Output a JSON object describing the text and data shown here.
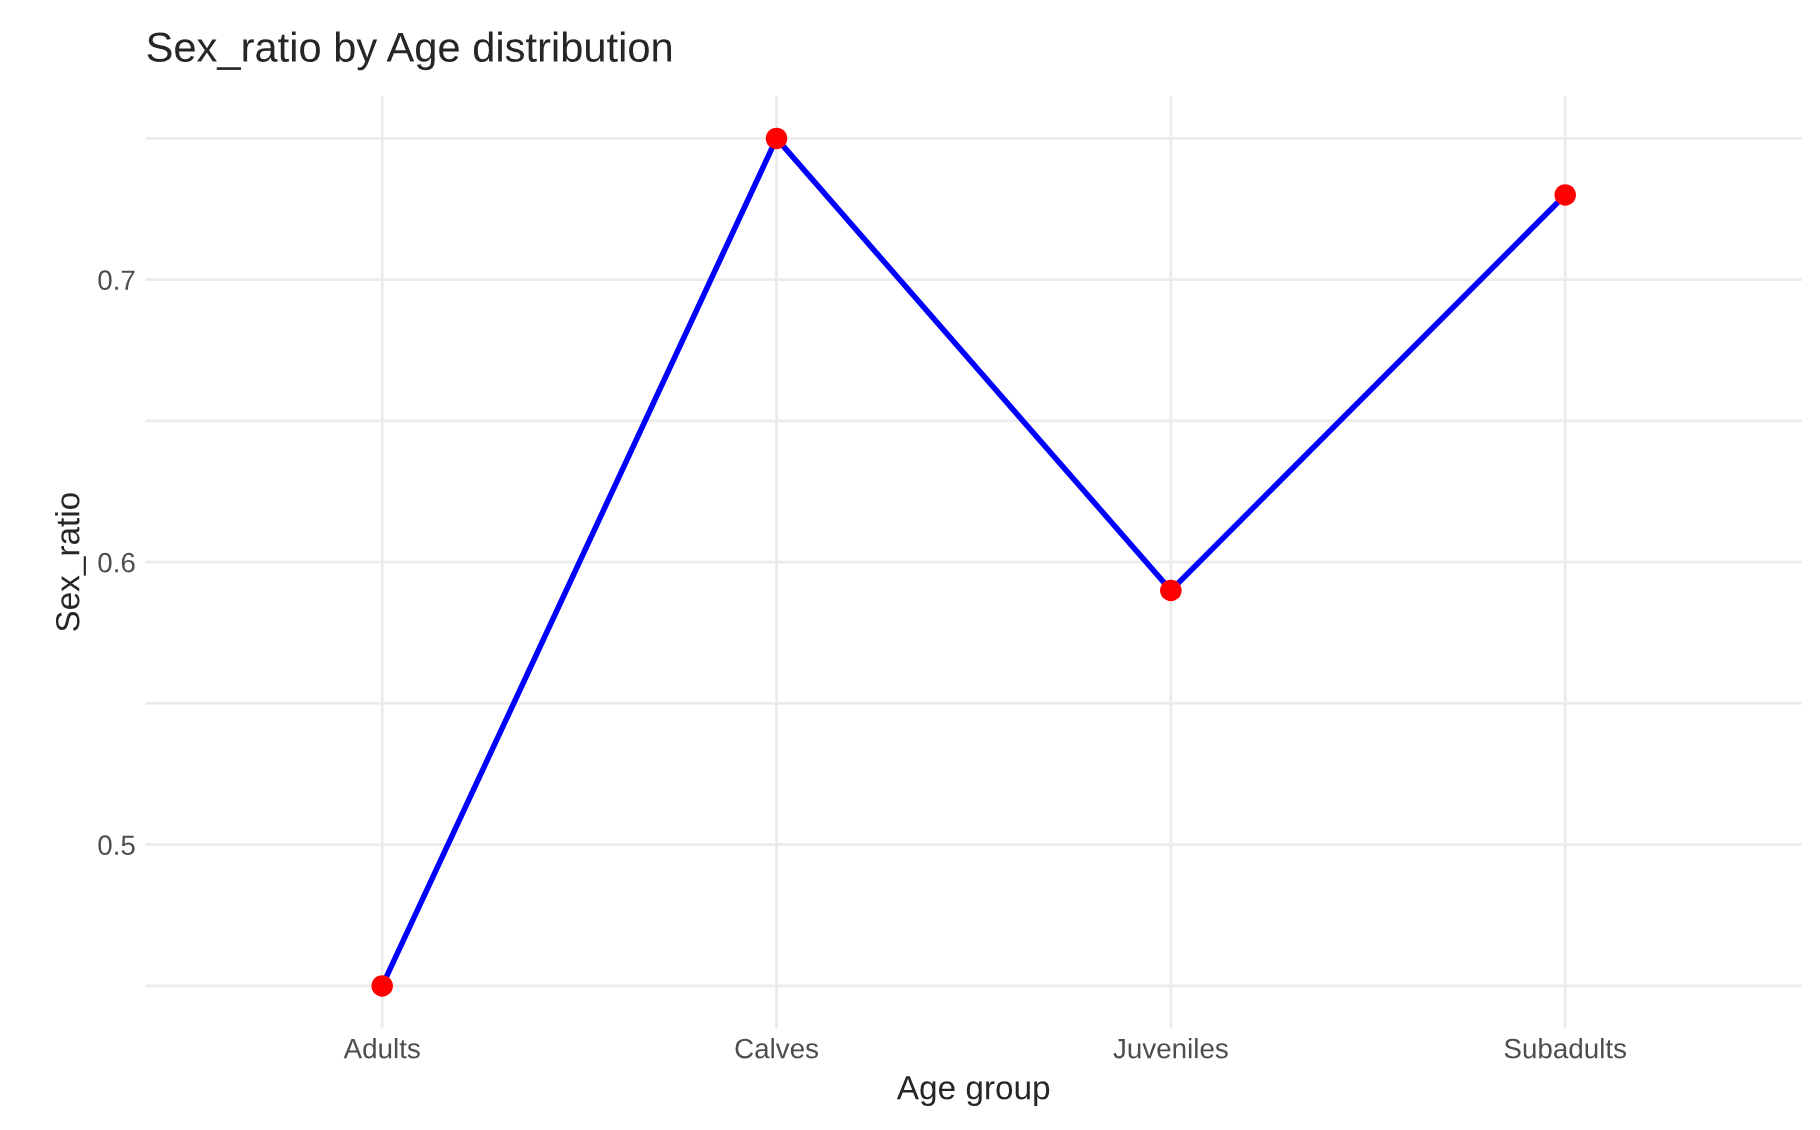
{
  "chart_data": {
    "type": "line",
    "title": "Sex_ratio by Age distribution",
    "xlabel": "Age group",
    "ylabel": "Sex_ratio",
    "categories": [
      "Adults",
      "Calves",
      "Juveniles",
      "Subadults"
    ],
    "series": [
      {
        "color": "#0000ff",
        "marker": "none",
        "values": [
          0.45,
          0.75,
          0.59,
          0.73
        ]
      },
      {
        "type": "scatter",
        "color": "#ff0000",
        "marker": "circle",
        "values": [
          0.45,
          0.75,
          0.59,
          0.73
        ]
      }
    ],
    "ylim": [
      0.435,
      0.765
    ],
    "yticks": [
      {
        "value": 0.45,
        "label": null
      },
      0.5,
      {
        "value": 0.55,
        "label": null
      },
      0.6,
      {
        "value": 0.65,
        "label": null
      },
      0.7,
      {
        "value": 0.75,
        "label": null
      }
    ],
    "grid": true,
    "line_style": "solid"
  }
}
